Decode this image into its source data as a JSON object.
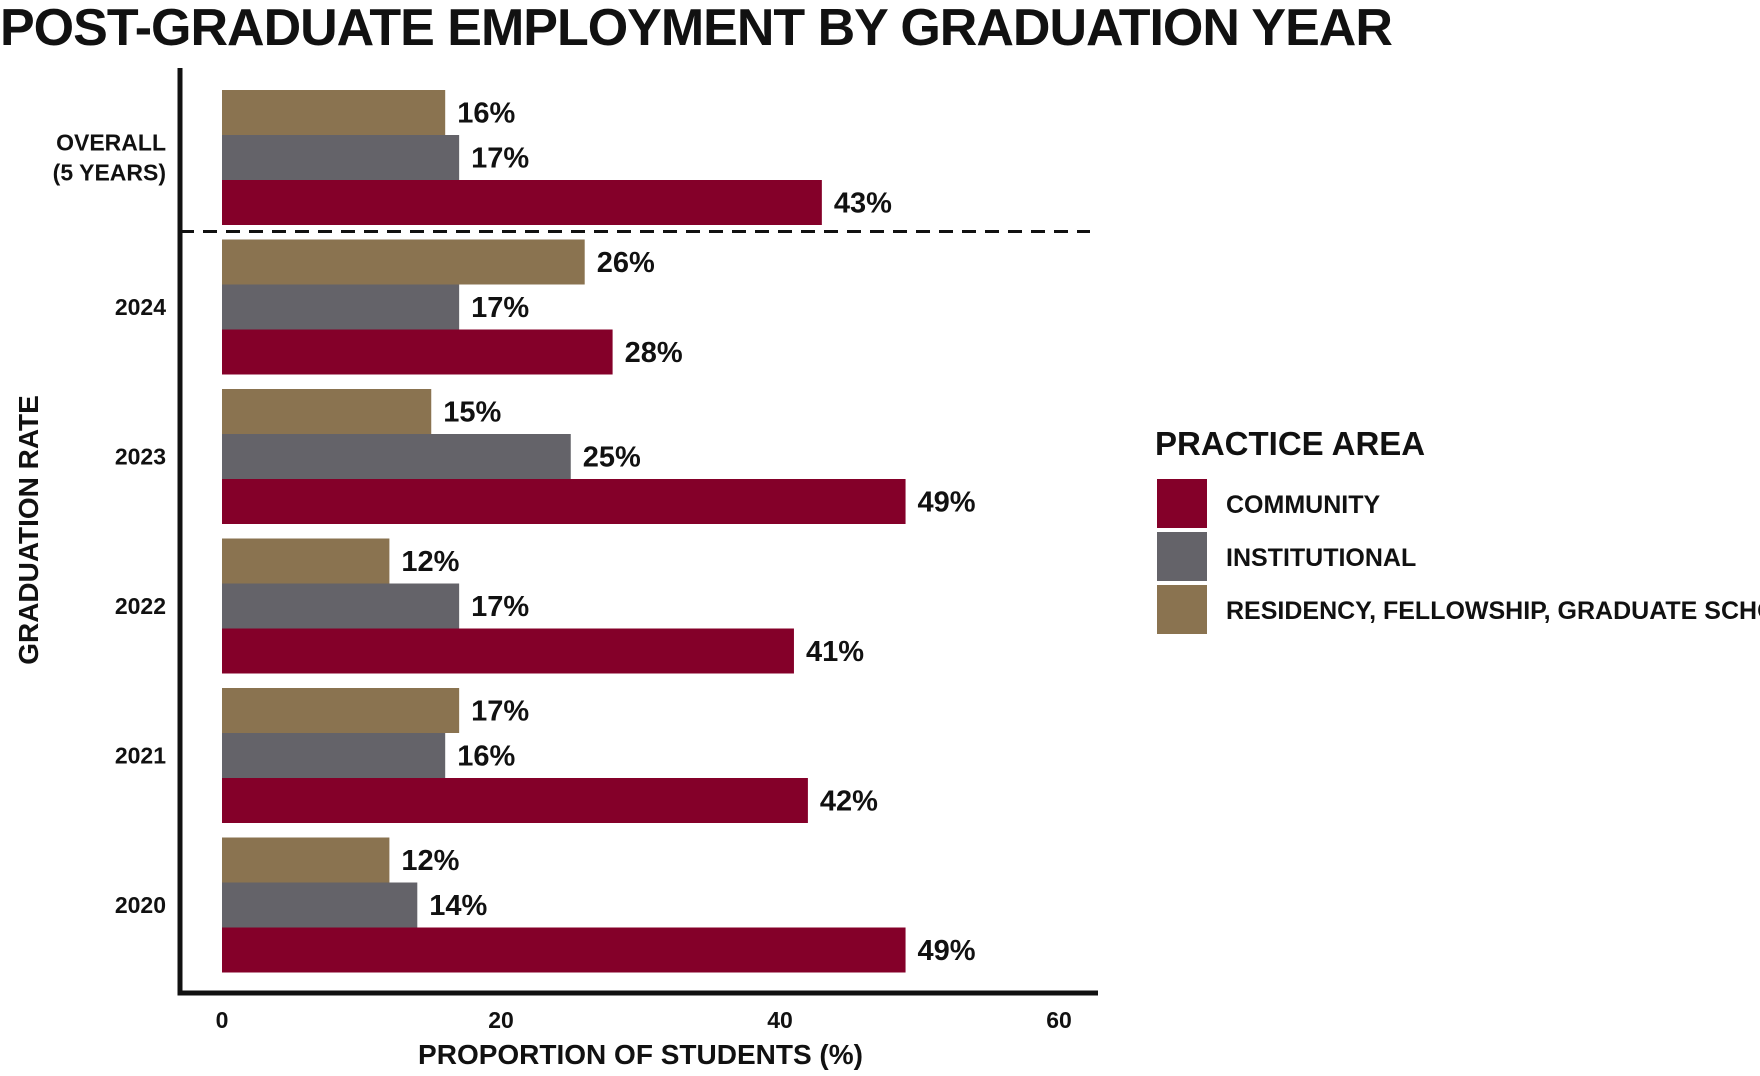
{
  "chart_data": {
    "type": "bar",
    "orientation": "horizontal",
    "title": "POST-GRADUATE EMPLOYMENT BY GRADUATION YEAR",
    "xlabel": "PROPORTION OF STUDENTS (%)",
    "ylabel": "GRADUATION RATE",
    "xlim": [
      0,
      60
    ],
    "xticks": [
      0,
      20,
      40,
      60
    ],
    "grid": false,
    "categories": [
      {
        "label_lines": [
          "OVERALL",
          "(5 YEARS)"
        ]
      },
      {
        "label_lines": [
          "2024"
        ]
      },
      {
        "label_lines": [
          "2023"
        ]
      },
      {
        "label_lines": [
          "2022"
        ]
      },
      {
        "label_lines": [
          "2021"
        ]
      },
      {
        "label_lines": [
          "2020"
        ]
      }
    ],
    "series": [
      {
        "key": "residency",
        "name": "RESIDENCY, FELLOWSHIP, GRADUATE SCHOOL",
        "color": "#8a7350",
        "values": [
          16,
          26,
          15,
          12,
          17,
          12
        ],
        "labels": [
          "16%",
          "26%",
          "15%",
          "12%",
          "17%",
          "12%"
        ]
      },
      {
        "key": "institutional",
        "name": "INSTITUTIONAL",
        "color": "#646369",
        "values": [
          17,
          17,
          25,
          17,
          16,
          14
        ],
        "labels": [
          "17%",
          "17%",
          "25%",
          "17%",
          "16%",
          "14%"
        ]
      },
      {
        "key": "community",
        "name": "COMMUNITY",
        "color": "#840029",
        "values": [
          43,
          28,
          49,
          41,
          42,
          49
        ],
        "labels": [
          "43%",
          "28%",
          "49%",
          "41%",
          "42%",
          "49%"
        ]
      }
    ],
    "separator_after_category": 0,
    "legend": {
      "title": "PRACTICE AREA",
      "placement": "right",
      "order": [
        "community",
        "institutional",
        "residency"
      ]
    }
  }
}
